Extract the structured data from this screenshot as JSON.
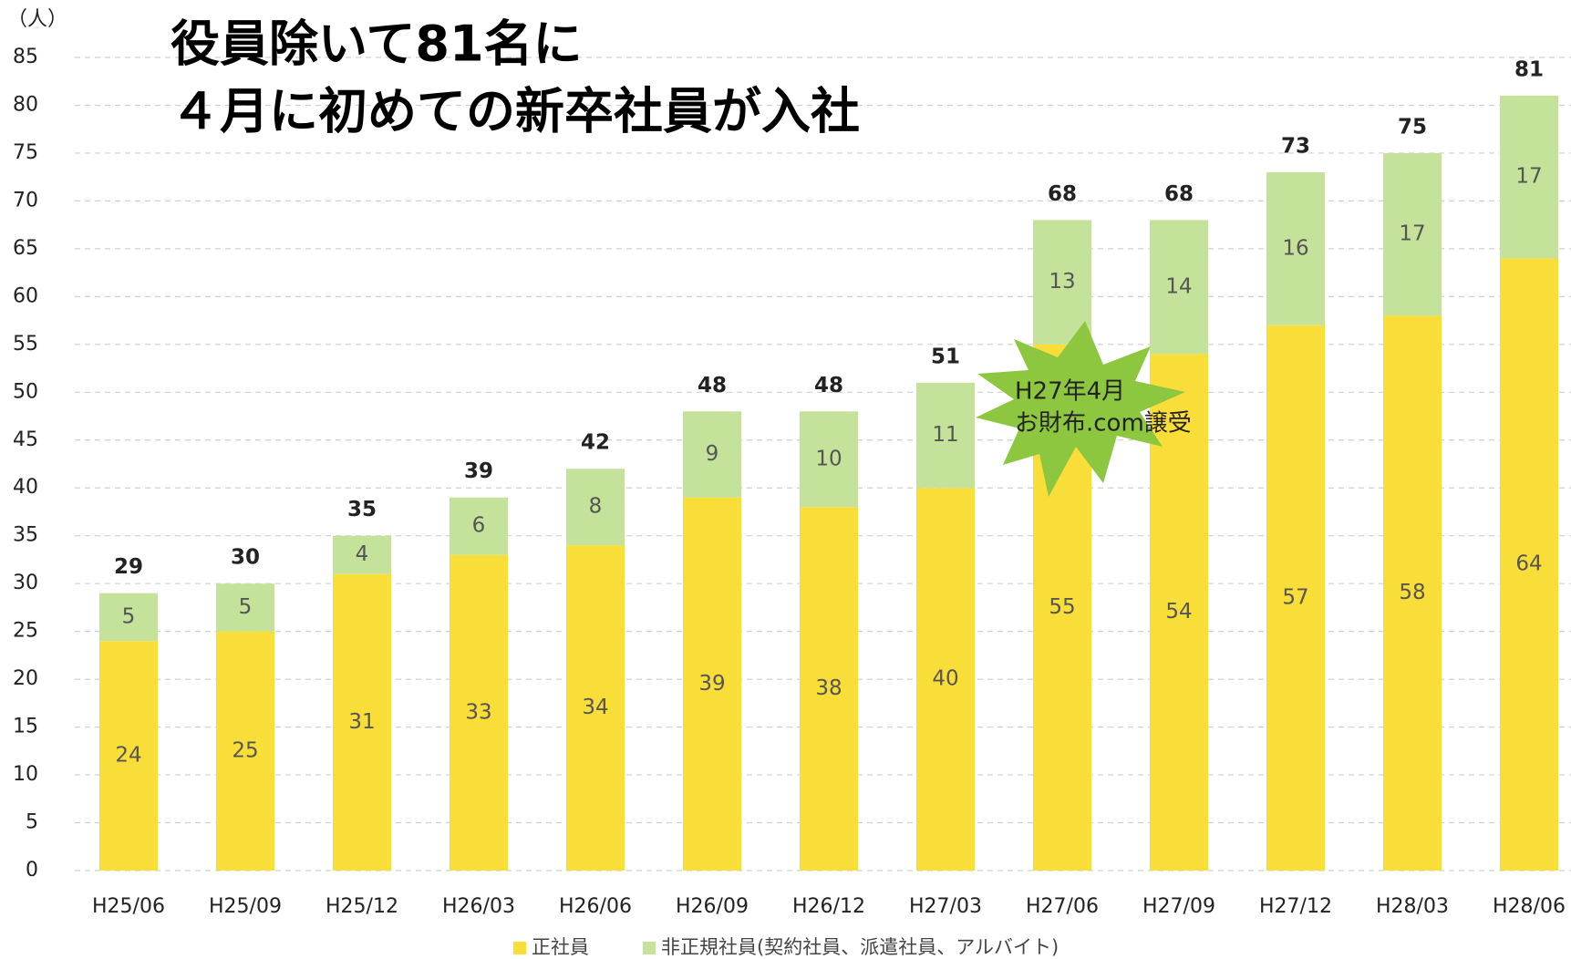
{
  "chart_data": {
    "type": "stacked_bar",
    "title_lines": [
      "役員除いて81名に",
      "４月に初めての新卒社員が入社"
    ],
    "y_label": "（人）",
    "categories": [
      "H25/06",
      "H25/09",
      "H25/12",
      "H26/03",
      "H26/06",
      "H26/09",
      "H26/12",
      "H27/03",
      "H27/06",
      "H27/09",
      "H27/12",
      "H28/03",
      "H28/06"
    ],
    "series": [
      {
        "name": "正社員",
        "color": "#f9de3a",
        "values": [
          24,
          25,
          31,
          33,
          34,
          39,
          38,
          40,
          55,
          54,
          57,
          58,
          64
        ]
      },
      {
        "name": "非正規社員(契約社員、派遣社員、アルバイト)",
        "color": "#c4e29a",
        "values": [
          5,
          5,
          4,
          6,
          8,
          9,
          10,
          11,
          13,
          14,
          16,
          17,
          17
        ]
      }
    ],
    "totals": [
      29,
      30,
      35,
      39,
      42,
      48,
      48,
      51,
      68,
      68,
      73,
      75,
      81
    ],
    "annotation": [
      "H27年4月",
      "お財布.com譲受"
    ],
    "ylim": [
      0,
      85
    ],
    "yticks": [
      0,
      5,
      10,
      15,
      20,
      25,
      30,
      35,
      40,
      45,
      50,
      55,
      60,
      65,
      70,
      75,
      80,
      85
    ],
    "grid": true
  }
}
